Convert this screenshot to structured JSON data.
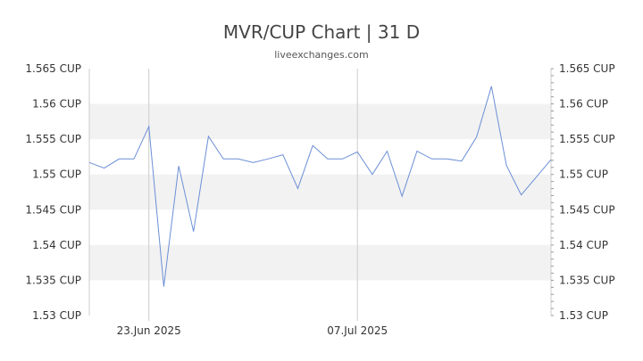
{
  "title": "MVR/CUP Chart | 31 D",
  "subtitle": "liveexchanges.com",
  "colors": {
    "line": "#6b8fd6",
    "band": "#f2f2f2",
    "grid": "#d9d9d9",
    "axis": "#cccccc",
    "text": "#333333"
  },
  "chart_data": {
    "type": "line",
    "title": "MVR/CUP Chart | 31 D",
    "xlabel": "",
    "ylabel": "",
    "ylim": [
      1.53,
      1.565
    ],
    "y_ticks": [
      "1.565 CUP",
      "1.56 CUP",
      "1.555 CUP",
      "1.55 CUP",
      "1.545 CUP",
      "1.54 CUP",
      "1.535 CUP",
      "1.53 CUP"
    ],
    "y_tick_values": [
      1.565,
      1.56,
      1.555,
      1.55,
      1.545,
      1.54,
      1.535,
      1.53
    ],
    "x_ticks": [
      {
        "label": "23.Jun 2025",
        "index": 4
      },
      {
        "label": "07.Jul 2025",
        "index": 18
      }
    ],
    "grid": true,
    "series": [
      {
        "values": [
          1.5517,
          1.5509,
          1.5522,
          1.5522,
          1.5568,
          1.5341,
          1.5512,
          1.5419,
          1.5554,
          1.5522,
          1.5522,
          1.5517,
          1.5522,
          1.5528,
          1.548,
          1.5541,
          1.5522,
          1.5522,
          1.5532,
          1.55,
          1.5533,
          1.5469,
          1.5533,
          1.5522,
          1.5522,
          1.5519,
          1.5553,
          1.5625,
          1.5513,
          1.5471,
          1.5496,
          1.5521
        ]
      }
    ]
  }
}
